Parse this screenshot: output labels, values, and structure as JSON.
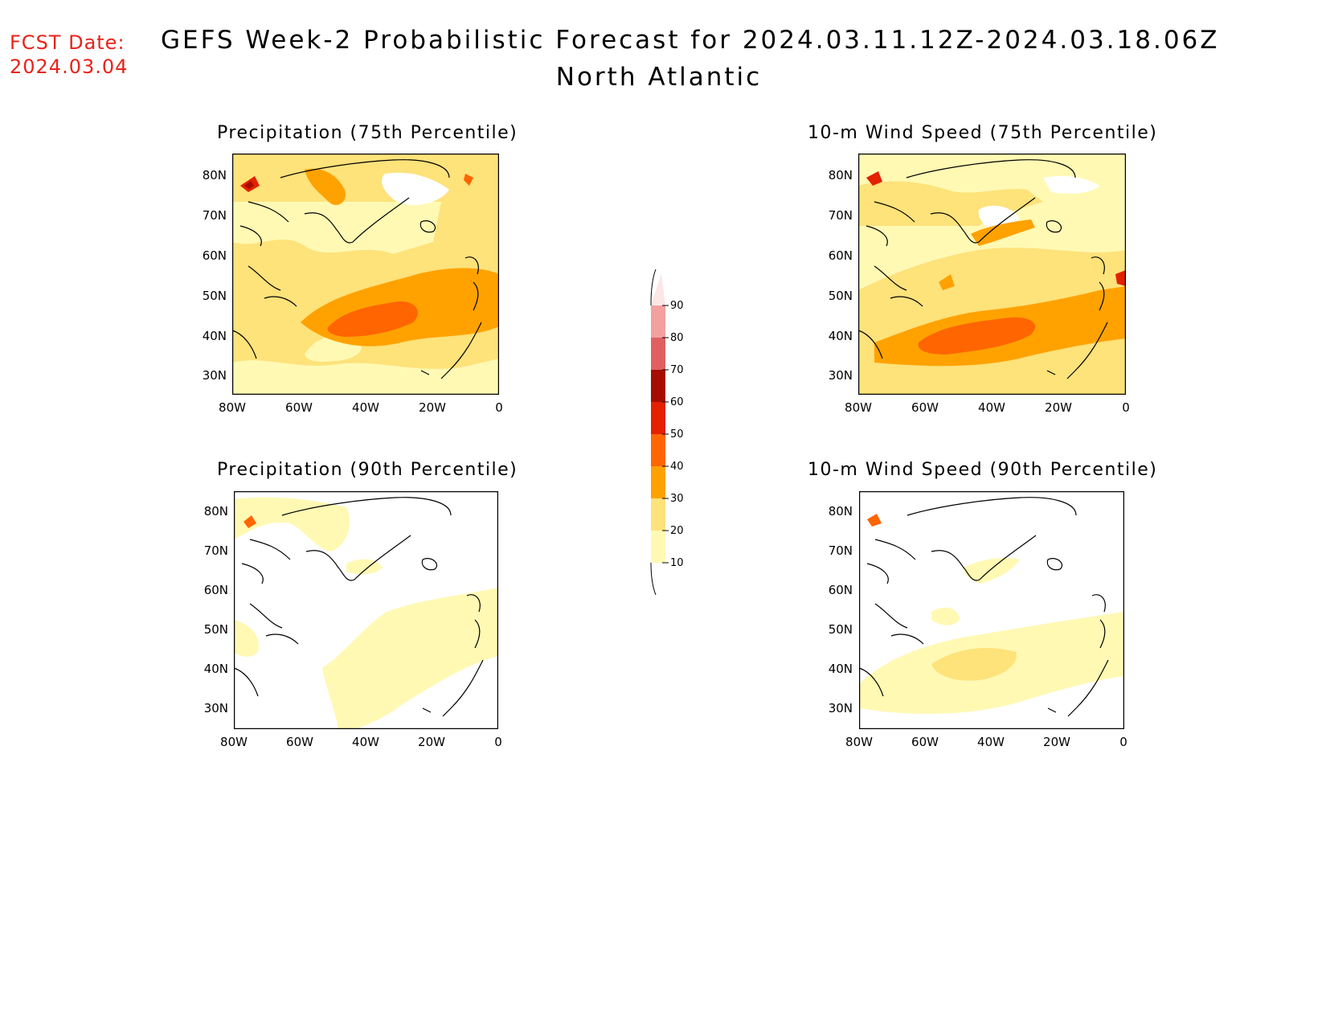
{
  "header": {
    "fcst_label": "FCST Date:",
    "fcst_date": "2024.03.04",
    "title": "GEFS Week-2 Probabilistic Forecast for 2024.03.11.12Z-2024.03.18.06Z",
    "subtitle": "North Atlantic"
  },
  "panels": [
    {
      "title": "Precipitation (75th Percentile)"
    },
    {
      "title": "10-m Wind Speed (75th Percentile)"
    },
    {
      "title": "Precipitation (90th Percentile)"
    },
    {
      "title": "10-m Wind Speed (90th Percentile)"
    }
  ],
  "axes": {
    "lat_labels": [
      "80N",
      "70N",
      "60N",
      "50N",
      "40N",
      "30N"
    ],
    "lon_labels": [
      "80W",
      "60W",
      "40W",
      "20W",
      "0"
    ]
  },
  "colorbar": {
    "levels": [
      "10",
      "20",
      "30",
      "40",
      "50",
      "60",
      "70",
      "80",
      "90"
    ],
    "colors": [
      "#fff9b4",
      "#fee27a",
      "#ffa200",
      "#ff6500",
      "#e32000",
      "#a60c00",
      "#e06062",
      "#f3a0a0",
      "#fde6e6"
    ]
  }
}
